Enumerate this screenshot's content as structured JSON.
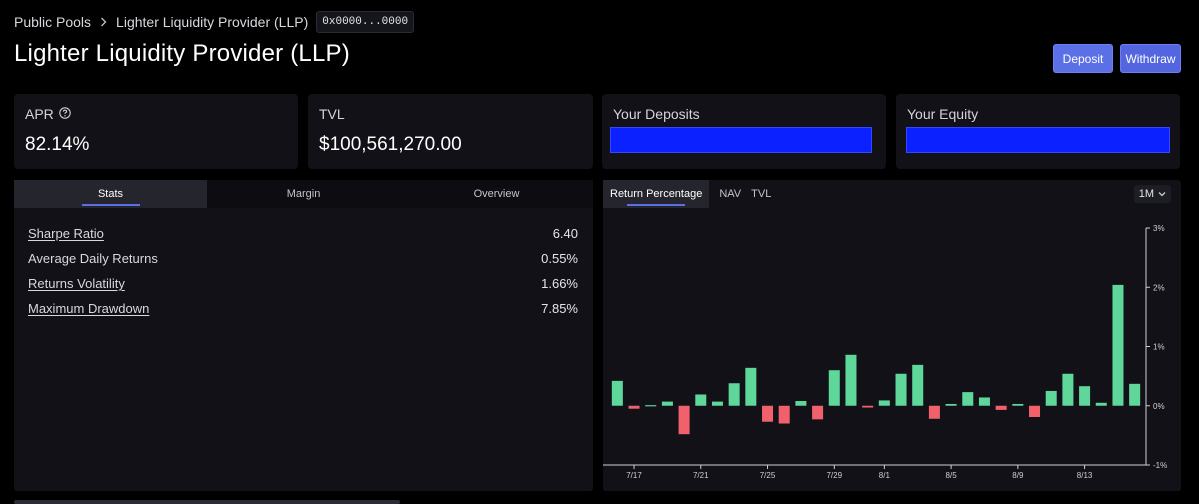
{
  "breadcrumb": {
    "root": "Public Pools",
    "current": "Lighter Liquidity Provider (LLP)",
    "address": "0x0000...0000"
  },
  "page": {
    "title": "Lighter Liquidity Provider (LLP)"
  },
  "actions": {
    "deposit": "Deposit",
    "withdraw": "Withdraw"
  },
  "cards": {
    "apr": {
      "label": "APR",
      "value": "82.14%"
    },
    "tvl": {
      "label": "TVL",
      "value": "$100,561,270.00"
    },
    "deposits": {
      "label": "Your Deposits"
    },
    "equity": {
      "label": "Your Equity"
    }
  },
  "colors": {
    "accent": "#5b6fe6",
    "positive": "#5fd69a",
    "negative": "#f0616c",
    "redacted": "#0b21ff"
  },
  "left_tabs": [
    {
      "label": "Stats",
      "active": true
    },
    {
      "label": "Margin",
      "active": false
    },
    {
      "label": "Overview",
      "active": false
    }
  ],
  "stats": [
    {
      "label": "Sharpe Ratio",
      "value": "6.40",
      "underlined": true
    },
    {
      "label": "Average Daily Returns",
      "value": "0.55%",
      "underlined": false
    },
    {
      "label": "Returns Volatility",
      "value": "1.66%",
      "underlined": true
    },
    {
      "label": "Maximum Drawdown",
      "value": "7.85%",
      "underlined": true
    }
  ],
  "chart_tabs": [
    {
      "label": "Return Percentage",
      "active": true
    },
    {
      "label": "NAV",
      "active": false
    },
    {
      "label": "TVL",
      "active": false
    }
  ],
  "range": {
    "value": "1M",
    "icon": "chevron-down-icon"
  },
  "chart_data": {
    "type": "bar",
    "x_ticks": [
      "7/17",
      "7/21",
      "7/25",
      "7/29",
      "8/1",
      "8/5",
      "8/9",
      "8/13"
    ],
    "y_ticks": [
      "3%",
      "2%",
      "1%",
      "0%",
      "-1%"
    ],
    "ylim": [
      -1,
      3
    ],
    "values": [
      0.42,
      -0.05,
      0.01,
      0.07,
      -0.48,
      0.19,
      0.07,
      0.38,
      0.64,
      -0.27,
      -0.3,
      0.08,
      -0.23,
      0.6,
      0.86,
      -0.03,
      0.09,
      0.54,
      0.69,
      -0.22,
      0.03,
      0.23,
      0.14,
      -0.07,
      0.03,
      -0.19,
      0.25,
      0.54,
      0.33,
      0.05,
      2.04,
      0.37
    ]
  }
}
